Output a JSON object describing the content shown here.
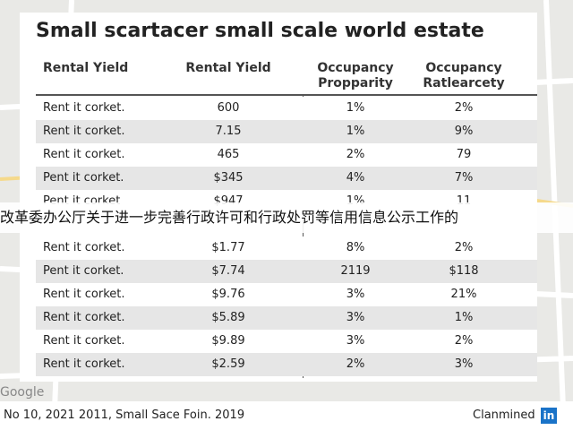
{
  "title": "Small scartacer small scale world estate",
  "table": {
    "header": [
      "Rental Yield",
      "Rental Yield",
      "Occupancy Propparity",
      "Occupancy Ratlearcety"
    ],
    "rows": [
      [
        "Rent it corket.",
        "600",
        "1%",
        "2%"
      ],
      [
        "Rent it corket.",
        "7.15",
        "1%",
        "9%"
      ],
      [
        "Rent it corket.",
        "465",
        "2%",
        "79"
      ],
      [
        "Pent it corket.",
        "$345",
        "4%",
        "7%"
      ],
      [
        "Pent it corket",
        "$947",
        "1%",
        "11"
      ],
      [
        "Rent it corket.",
        "$1.77",
        "8%",
        "2%"
      ],
      [
        "Pent it corket.",
        "$7.74",
        "2119",
        "$118"
      ],
      [
        "Rent it corket.",
        "$9.76",
        "3%",
        "21%"
      ],
      [
        "Rent it corket.",
        "$5.89",
        "3%",
        "1%"
      ],
      [
        "Rent it corket.",
        "$9.89",
        "3%",
        "2%"
      ],
      [
        "Rent it corket.",
        "$2.59",
        "2%",
        "3%"
      ]
    ]
  },
  "banner": "改革委办公厅关于进一步完善行政许可和行政处罚等信用信息公示工作的",
  "footer": {
    "citation": "No 10, 2021 2011, Small Sace Foin. 2019",
    "brand": "Clanmined",
    "badge": "in"
  },
  "map": {
    "watermark": "Google"
  }
}
